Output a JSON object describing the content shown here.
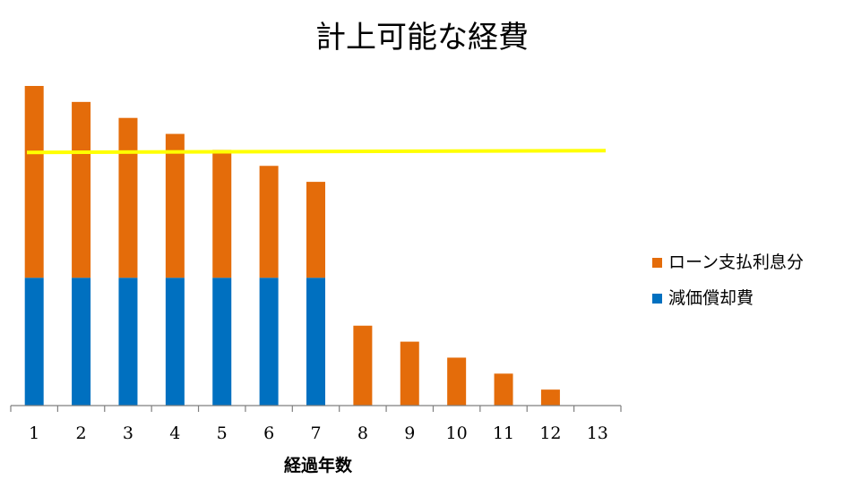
{
  "chart_data": {
    "type": "bar",
    "stacked": true,
    "title": "計上可能な経費",
    "xlabel": "経過年数",
    "ylabel": "",
    "categories": [
      "1",
      "2",
      "3",
      "4",
      "5",
      "6",
      "7",
      "8",
      "9",
      "10",
      "11",
      "12",
      "13"
    ],
    "ylim": [
      0,
      100
    ],
    "series": [
      {
        "name": "減価償却費",
        "color": "#0070C0",
        "values": [
          40,
          40,
          40,
          40,
          40,
          40,
          40,
          0,
          0,
          0,
          0,
          0,
          0
        ]
      },
      {
        "name": "ローン支払利息分",
        "color": "#E46C0A",
        "values": [
          60,
          55,
          50,
          45,
          40,
          35,
          30,
          25,
          20,
          15,
          10,
          5,
          0
        ]
      }
    ],
    "reference_line": {
      "value": 79.5,
      "color": "#FFFF00"
    },
    "grid": false,
    "legend": "right"
  }
}
